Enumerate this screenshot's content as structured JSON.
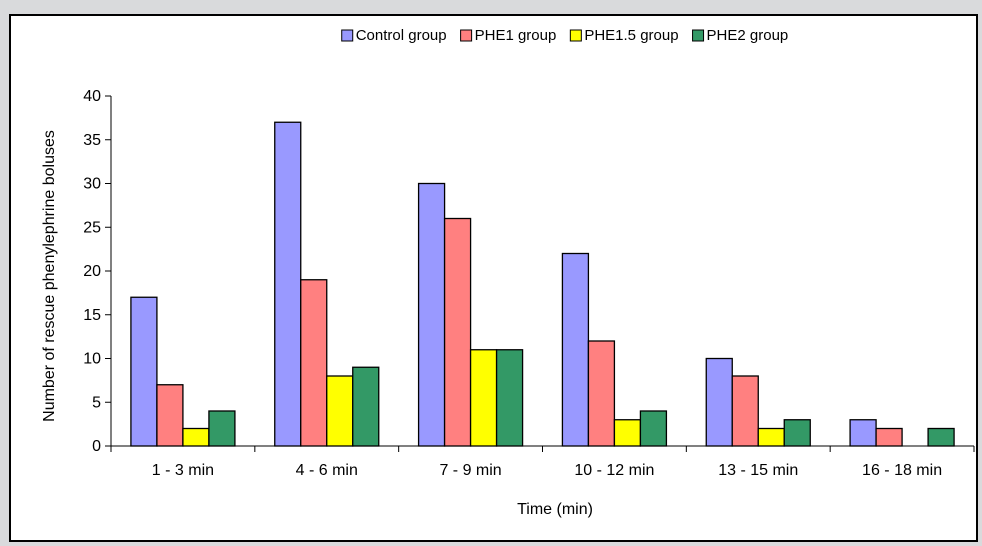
{
  "chart_data": {
    "type": "bar",
    "categories": [
      "1 - 3 min",
      "4 - 6 min",
      "7 - 9 min",
      "10 - 12 min",
      "13 - 15 min",
      "16 - 18 min"
    ],
    "series": [
      {
        "name": "Control group",
        "color": "#9999ff",
        "values": [
          17,
          37,
          30,
          22,
          10,
          3
        ]
      },
      {
        "name": "PHE1 group",
        "color": "#ff8080",
        "values": [
          7,
          19,
          26,
          12,
          8,
          2
        ]
      },
      {
        "name": "PHE1.5 group",
        "color": "#ffff00",
        "values": [
          2,
          8,
          11,
          3,
          2,
          0
        ]
      },
      {
        "name": "PHE2 group",
        "color": "#339966",
        "values": [
          4,
          9,
          11,
          4,
          3,
          2
        ]
      }
    ],
    "xlabel": "Time (min)",
    "ylabel": "Number of rescue phenylephrine boluses",
    "ylim": [
      0,
      40
    ],
    "yticks": [
      0,
      5,
      10,
      15,
      20,
      25,
      30,
      35,
      40
    ],
    "grid": false,
    "legend_position": "top"
  }
}
